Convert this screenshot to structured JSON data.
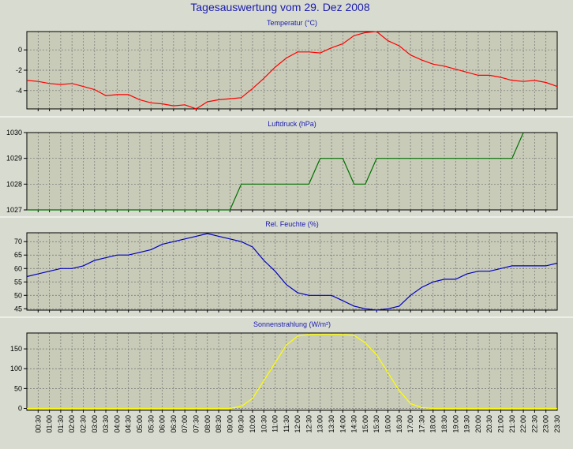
{
  "title": "Tagesauswertung vom 29. Dez 2008",
  "colors": {
    "background": "#d8dcd0",
    "plot_background": "#c8cbb8",
    "title": "#1a1ab0",
    "grid": "#707070",
    "frame": "#000000"
  },
  "x_ticks": [
    "00:30",
    "01:00",
    "01:30",
    "02:00",
    "02:30",
    "03:00",
    "03:30",
    "04:00",
    "04:30",
    "05:00",
    "05:30",
    "06:00",
    "06:30",
    "07:00",
    "07:30",
    "08:00",
    "08:30",
    "09:00",
    "09:30",
    "10:00",
    "10:30",
    "11:00",
    "11:30",
    "12:00",
    "12:30",
    "13:00",
    "13:30",
    "14:00",
    "14:30",
    "15:00",
    "15:30",
    "16:00",
    "16:30",
    "17:00",
    "17:30",
    "18:00",
    "18:30",
    "19:00",
    "19:30",
    "20:00",
    "20:30",
    "21:00",
    "21:30",
    "22:00",
    "22:30",
    "23:00",
    "23:30"
  ],
  "chart_data": [
    {
      "type": "line",
      "title": "Temperatur (°C)",
      "color": "#ff0000",
      "grid": true,
      "ylim": [
        -5.8,
        1.8
      ],
      "yticks": [
        0,
        -2,
        -4
      ],
      "x": [
        0,
        1,
        2,
        3,
        4,
        5,
        6,
        7,
        8,
        9,
        10,
        11,
        12,
        13,
        14,
        15,
        16,
        17,
        18,
        19,
        20,
        21,
        22,
        23,
        24,
        25,
        26,
        27,
        28,
        29,
        30,
        31,
        32,
        33,
        34,
        35,
        36,
        37,
        38,
        39,
        40,
        41,
        42,
        43,
        44,
        45,
        46,
        47
      ],
      "y": [
        -3.0,
        -3.1,
        -3.3,
        -3.4,
        -3.3,
        -3.6,
        -3.9,
        -4.5,
        -4.4,
        -4.4,
        -4.9,
        -5.2,
        -5.3,
        -5.5,
        -5.4,
        -5.8,
        -5.1,
        -4.9,
        -4.8,
        -4.7,
        -3.8,
        -2.8,
        -1.7,
        -0.8,
        -0.2,
        -0.2,
        -0.3,
        0.2,
        0.6,
        1.4,
        1.7,
        1.8,
        0.9,
        0.4,
        -0.5,
        -1.0,
        -1.4,
        -1.6,
        -1.9,
        -2.2,
        -2.5,
        -2.5,
        -2.7,
        -3.0,
        -3.1,
        -3.0,
        -3.2,
        -3.6
      ]
    },
    {
      "type": "line",
      "title": "Luftdruck (hPa)",
      "color": "#007000",
      "grid": true,
      "ylim": [
        1027,
        1030
      ],
      "yticks": [
        1030,
        1029,
        1028,
        1027
      ],
      "x": [
        0,
        18,
        19,
        25,
        26,
        28,
        29,
        30,
        31,
        32,
        43,
        44
      ],
      "y": [
        1027,
        1027,
        1028,
        1028,
        1029,
        1029,
        1028,
        1028,
        1029,
        1029,
        1029,
        1030
      ]
    },
    {
      "type": "line",
      "title": "Rel. Feuchte (%)",
      "color": "#0000c0",
      "grid": true,
      "ylim": [
        44.5,
        73.3
      ],
      "yticks": [
        70,
        65,
        60,
        55,
        50,
        45
      ],
      "x": [
        0,
        1,
        2,
        3,
        4,
        5,
        6,
        7,
        8,
        9,
        10,
        11,
        12,
        13,
        14,
        15,
        16,
        17,
        18,
        19,
        20,
        21,
        22,
        23,
        24,
        25,
        26,
        27,
        28,
        29,
        30,
        31,
        32,
        33,
        34,
        35,
        36,
        37,
        38,
        39,
        40,
        41,
        42,
        43,
        44,
        45,
        46,
        47
      ],
      "y": [
        57,
        58,
        59,
        60,
        60,
        61,
        63,
        64,
        65,
        65,
        66,
        67,
        69,
        70,
        71,
        72,
        73,
        72,
        71,
        70,
        68,
        63,
        59,
        54,
        51,
        50,
        50,
        50,
        48,
        46,
        45,
        44.5,
        45,
        46,
        50,
        53,
        55,
        56,
        56,
        58,
        59,
        59,
        60,
        61,
        61,
        61,
        61,
        62
      ]
    },
    {
      "type": "line",
      "title": "Sonnenstrahlung (W/m²)",
      "color": "#ffff00",
      "grid": true,
      "ylim": [
        -5,
        190
      ],
      "yticks": [
        150,
        100,
        50,
        0
      ],
      "x": [
        0,
        17,
        18,
        19,
        20,
        21,
        22,
        23,
        24,
        25,
        26,
        27,
        28,
        29,
        30,
        31,
        32,
        33,
        34,
        35,
        36,
        47
      ],
      "y": [
        0,
        0,
        0,
        5,
        25,
        70,
        115,
        160,
        182,
        186,
        187,
        187,
        186,
        184,
        165,
        135,
        90,
        45,
        12,
        2,
        0,
        0
      ]
    }
  ]
}
